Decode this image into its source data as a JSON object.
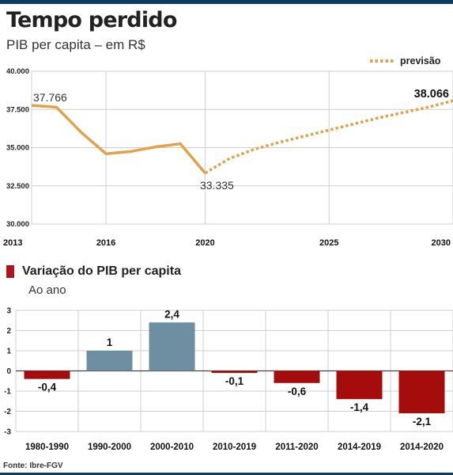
{
  "header": {
    "title": "Tempo perdido",
    "subtitle": "PIB per capita  – em R$"
  },
  "colors": {
    "navy": "#0b3a63",
    "orange": "#e2a24a",
    "bar_positive": "#6d8fa1",
    "bar_negative": "#a50d0d",
    "marker": "#b2141c"
  },
  "chart_data": [
    {
      "type": "line",
      "x_ticks": [
        2013,
        2016,
        2020,
        2025,
        2030
      ],
      "y_ticks": [
        "30.000",
        "32.500",
        "35.000",
        "37.500",
        "40.000"
      ],
      "ylim": [
        30000,
        40000
      ],
      "xlim": [
        2013,
        2030
      ],
      "legend": {
        "label": "previsão",
        "placement": "top-right"
      },
      "series": [
        {
          "style": "solid",
          "points": [
            [
              2013,
              37766
            ],
            [
              2014,
              37650
            ],
            [
              2015,
              36000
            ],
            [
              2016,
              34600
            ],
            [
              2017,
              34750
            ],
            [
              2018,
              35050
            ],
            [
              2019,
              35250
            ],
            [
              2020,
              33335
            ]
          ]
        },
        {
          "name": "previsão",
          "style": "dotted",
          "points": [
            [
              2020,
              33335
            ],
            [
              2021,
              34300
            ],
            [
              2022,
              34900
            ],
            [
              2023,
              35350
            ],
            [
              2024,
              35750
            ],
            [
              2025,
              36150
            ],
            [
              2026,
              36550
            ],
            [
              2027,
              36950
            ],
            [
              2028,
              37300
            ],
            [
              2029,
              37650
            ],
            [
              2030,
              38066
            ]
          ]
        }
      ],
      "annotations": [
        {
          "x": 2013,
          "y": 37766,
          "label": "37.766"
        },
        {
          "x": 2020,
          "y": 33335,
          "label": "33.335"
        },
        {
          "x": 2030,
          "y": 38066,
          "label": "38.066"
        }
      ]
    },
    {
      "type": "bar",
      "title": "Variação do PIB per capita",
      "subtitle": "Ao ano",
      "categories": [
        "1980-1990",
        "1990-2000",
        "2000-2010",
        "2010-2019",
        "2011-2020",
        "2014-2019",
        "2014-2020"
      ],
      "values": [
        -0.4,
        1,
        2.4,
        -0.1,
        -0.6,
        -1.4,
        -2.1
      ],
      "value_labels": [
        "-0,4",
        "1",
        "2,4",
        "-0,1",
        "-0,6",
        "-1,4",
        "-2,1"
      ],
      "y_ticks": [
        "3",
        "2",
        "1",
        "0",
        "-1",
        "-2",
        "-3"
      ],
      "ylim": [
        -3,
        3
      ]
    }
  ],
  "source": "Fonte: Ibre-FGV"
}
